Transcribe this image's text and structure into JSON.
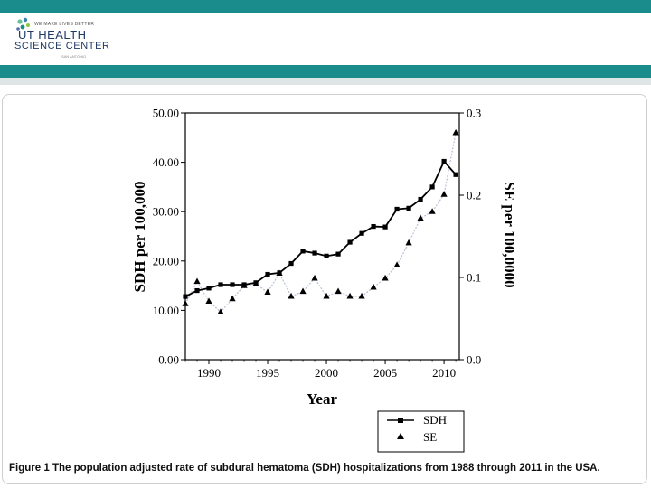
{
  "header": {
    "logo_tagline": "WE MAKE LIVES BETTER",
    "logo_line1": "UT HEALTH",
    "logo_line2": "SCIENCE CENTER",
    "logo_sub": "SAN ANTONIO",
    "colors": {
      "brand": "#1a8c8c",
      "band": "#dfe5e5"
    }
  },
  "caption": {
    "label": "Figure 1",
    "text": "The population adjusted rate of subdural hematoma (SDH) hospitalizations from 1988 through 2011 in the USA."
  },
  "chart_data": {
    "type": "line",
    "title": "",
    "xlabel": "Year",
    "ylabel": "SDH per 100,000",
    "y2label": "SE per 100,0000",
    "xlim": [
      1988,
      2011.3
    ],
    "ylim": [
      0,
      50
    ],
    "y2lim": [
      0,
      0.3
    ],
    "x_ticks": [
      "1990",
      "1995",
      "2000",
      "2005",
      "2010"
    ],
    "y_ticks": [
      "0.00",
      "10.00",
      "20.00",
      "30.00",
      "40.00",
      "50.00"
    ],
    "y2_ticks": [
      "0.0",
      "0.1",
      "0.2",
      "0.3"
    ],
    "legend": {
      "position": "bottom-right",
      "entries": [
        "SDH",
        "SE"
      ]
    },
    "series": [
      {
        "name": "SDH",
        "axis": "left",
        "marker": "square",
        "x": [
          1988,
          1989,
          1990,
          1991,
          1992,
          1993,
          1994,
          1995,
          1996,
          1997,
          1998,
          1999,
          2000,
          2001,
          2002,
          2003,
          2004,
          2005,
          2006,
          2007,
          2008,
          2009,
          2010,
          2011
        ],
        "values": [
          12.8,
          14.0,
          14.5,
          15.2,
          15.2,
          15.2,
          15.6,
          17.3,
          17.6,
          19.5,
          22.0,
          21.6,
          21.0,
          21.4,
          23.8,
          25.6,
          27.0,
          26.9,
          30.5,
          30.7,
          32.5,
          35.0,
          40.2,
          37.5
        ]
      },
      {
        "name": "SE",
        "axis": "right",
        "marker": "triangle",
        "x": [
          1988,
          1989,
          1990,
          1991,
          1992,
          1993,
          1994,
          1995,
          1996,
          1997,
          1998,
          1999,
          2000,
          2001,
          2002,
          2003,
          2004,
          2005,
          2006,
          2007,
          2008,
          2009,
          2010,
          2011
        ],
        "values": [
          0.068,
          0.095,
          0.071,
          0.058,
          0.074,
          0.09,
          0.092,
          0.082,
          0.105,
          0.077,
          0.083,
          0.099,
          0.077,
          0.083,
          0.077,
          0.077,
          0.088,
          0.099,
          0.115,
          0.142,
          0.172,
          0.18,
          0.201,
          0.276
        ]
      }
    ]
  }
}
